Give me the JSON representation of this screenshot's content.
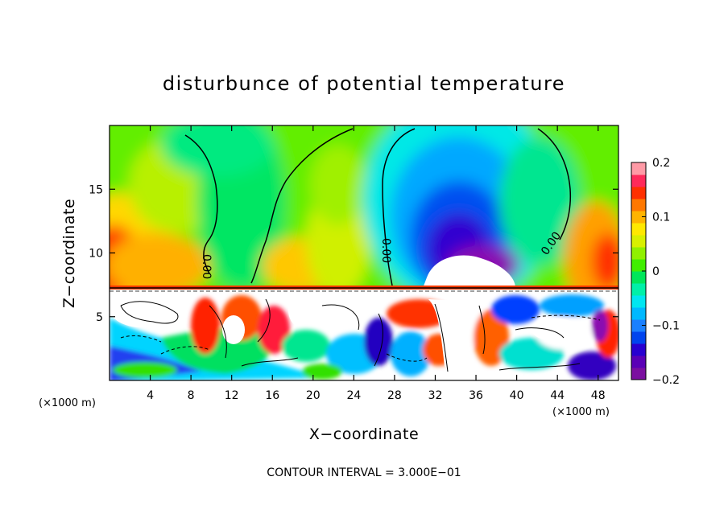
{
  "chart_data": {
    "type": "heatmap",
    "title": "disturbunce of potential temperature",
    "xlabel": "X−coordinate",
    "ylabel": "Z−coordinate",
    "x_unit_label": "(×1000 m)",
    "y_unit_label": "(×1000 m)",
    "x_ticks": [
      4,
      8,
      12,
      16,
      20,
      24,
      28,
      32,
      36,
      40,
      44,
      48
    ],
    "y_ticks": [
      5,
      10,
      15
    ],
    "xlim": [
      0,
      50
    ],
    "ylim": [
      0,
      20
    ],
    "colorbar": {
      "range": [
        -0.2,
        0.2
      ],
      "tick_values": [
        0.2,
        0.1,
        0,
        -0.1,
        -0.2
      ],
      "tick_labels": [
        "0.2",
        "0.1",
        "0",
        "−0.1",
        "−0.2"
      ],
      "colors": [
        "#7b0fa0",
        "#5a00b6",
        "#2800d0",
        "#0044ee",
        "#1a80ff",
        "#00b8ff",
        "#00e6f0",
        "#00f0a8",
        "#00e65a",
        "#40ee00",
        "#90f000",
        "#d8f000",
        "#ffe800",
        "#ffb400",
        "#ff7800",
        "#ff3000",
        "#ff2a5a",
        "#ff9aa6"
      ]
    },
    "contour_label": "0.00",
    "contour_interval_text": "CONTOUR INTERVAL = 3.000E−01",
    "features": [
      {
        "name": "cold-dome",
        "x": 34,
        "z": 11.5,
        "value": -0.2
      },
      {
        "name": "warm-left",
        "x": 1,
        "z": 10,
        "value": 0.15
      },
      {
        "name": "warm-right",
        "x": 49,
        "z": 10,
        "value": 0.15
      },
      {
        "name": "turbulent-layer",
        "z_range": [
          0,
          7.3
        ]
      }
    ]
  }
}
